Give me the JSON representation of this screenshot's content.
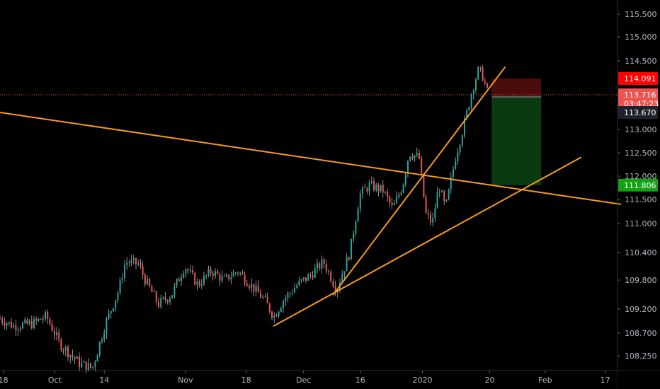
{
  "chart_data": {
    "type": "candlestick",
    "title": "",
    "xlabel": "",
    "ylabel": "",
    "ylim": [
      108.0,
      115.7
    ],
    "grid": false,
    "y_ticks": [
      "115.500",
      "115.000",
      "114.500",
      "113.700",
      "113.000",
      "112.500",
      "112.000",
      "111.500",
      "111.000",
      "110.400",
      "109.800",
      "109.200",
      "108.700",
      "108.250"
    ],
    "y_tick_values": [
      115.5,
      115.0,
      114.5,
      113.7,
      113.0,
      112.5,
      112.0,
      111.5,
      111.0,
      110.4,
      109.8,
      109.2,
      108.7,
      108.25
    ],
    "x_ticks": [
      "18",
      "Oct",
      "14",
      "Nov",
      "18",
      "Dec",
      "16",
      "2020",
      "20",
      "Feb",
      "17"
    ],
    "x_tick_positions": [
      0.005,
      0.083,
      0.158,
      0.281,
      0.373,
      0.46,
      0.546,
      0.64,
      0.742,
      0.826,
      0.917
    ],
    "candle_colors": {
      "up": "#26a69a",
      "down": "#ef5350",
      "wick": "#d1d4dc"
    },
    "price_path": [
      [
        0,
        109.0
      ],
      [
        0.02,
        108.85
      ],
      [
        0.05,
        108.9
      ],
      [
        0.07,
        109.05
      ],
      [
        0.09,
        108.5
      ],
      [
        0.12,
        108.1
      ],
      [
        0.14,
        108.0
      ],
      [
        0.16,
        108.9
      ],
      [
        0.18,
        109.6
      ],
      [
        0.19,
        110.2
      ],
      [
        0.21,
        110.15
      ],
      [
        0.22,
        109.8
      ],
      [
        0.24,
        109.3
      ],
      [
        0.26,
        109.5
      ],
      [
        0.28,
        110.1
      ],
      [
        0.3,
        109.7
      ],
      [
        0.32,
        110.0
      ],
      [
        0.34,
        109.8
      ],
      [
        0.36,
        110.0
      ],
      [
        0.38,
        109.7
      ],
      [
        0.4,
        109.4
      ],
      [
        0.415,
        109.05
      ],
      [
        0.43,
        109.4
      ],
      [
        0.45,
        109.7
      ],
      [
        0.47,
        109.9
      ],
      [
        0.49,
        110.2
      ],
      [
        0.5,
        109.9
      ],
      [
        0.51,
        109.6
      ],
      [
        0.53,
        110.4
      ],
      [
        0.545,
        111.6
      ],
      [
        0.56,
        111.8
      ],
      [
        0.58,
        111.7
      ],
      [
        0.595,
        111.3
      ],
      [
        0.61,
        111.8
      ],
      [
        0.62,
        112.5
      ],
      [
        0.635,
        112.4
      ],
      [
        0.645,
        111.2
      ],
      [
        0.655,
        111.0
      ],
      [
        0.665,
        111.8
      ],
      [
        0.675,
        111.3
      ],
      [
        0.69,
        112.4
      ],
      [
        0.705,
        113.2
      ],
      [
        0.715,
        113.8
      ],
      [
        0.725,
        114.3
      ],
      [
        0.73,
        114.2
      ],
      [
        0.74,
        113.7
      ]
    ],
    "trend_lines": [
      {
        "from": [
          0.0,
          113.35
        ],
        "to": [
          0.94,
          111.4
        ],
        "color": "#f59a23"
      },
      {
        "from": [
          0.415,
          108.85
        ],
        "to": [
          0.88,
          112.4
        ],
        "color": "#f59a23"
      },
      {
        "from": [
          0.505,
          109.5
        ],
        "to": [
          0.765,
          114.35
        ],
        "color": "#f59a23"
      }
    ],
    "current_price": 113.716,
    "position": {
      "entry": 113.67,
      "stop": 114.091,
      "target": 111.806,
      "x_start": 0.745,
      "x_end": 0.82
    },
    "price_tags": [
      {
        "label": "114.091",
        "value": 114.091,
        "color": "#ff0000"
      },
      {
        "label": "113.716",
        "value": 113.716,
        "color": "#ef5350"
      },
      {
        "label": "03:47:23",
        "value": 113.53,
        "color": "#ef5350"
      },
      {
        "label": "113.670",
        "value": 113.35,
        "color": "#1e222d"
      },
      {
        "label": "111.806",
        "value": 111.806,
        "color": "#14a114"
      }
    ]
  }
}
